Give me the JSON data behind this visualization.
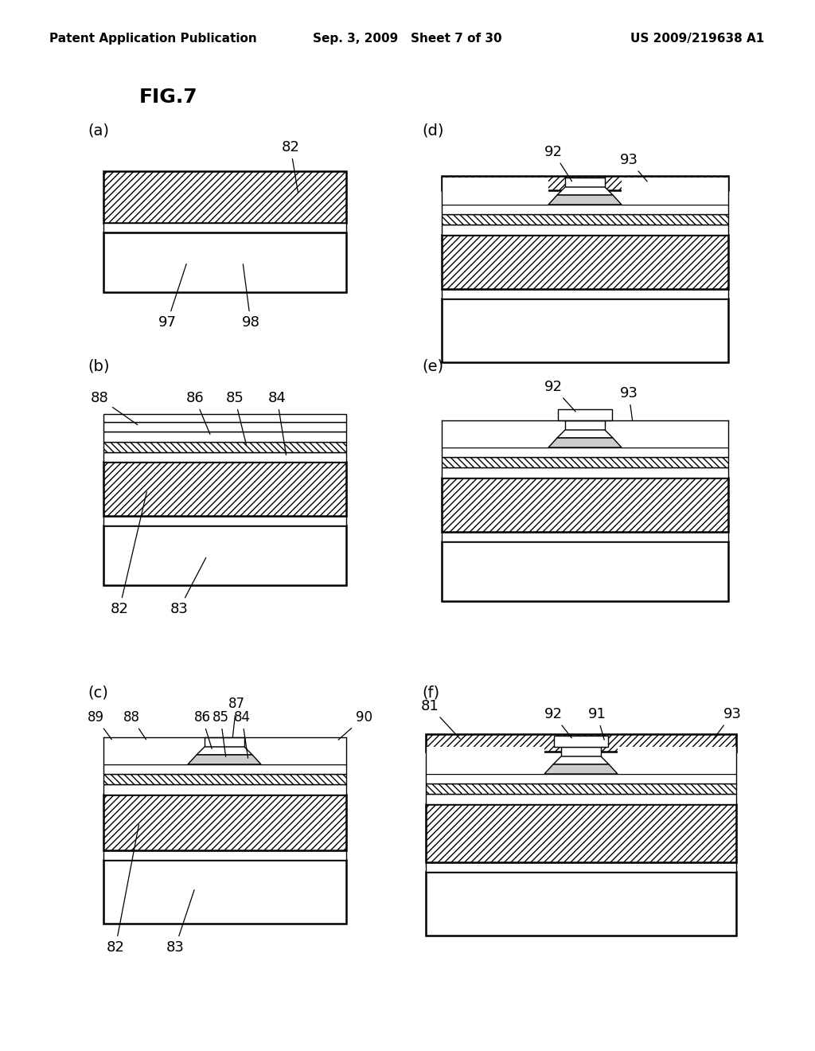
{
  "title": "FIG.7",
  "header_left": "Patent Application Publication",
  "header_center": "Sep. 3, 2009   Sheet 7 of 30",
  "header_right": "US 2009/219638 A1",
  "background": "#ffffff"
}
